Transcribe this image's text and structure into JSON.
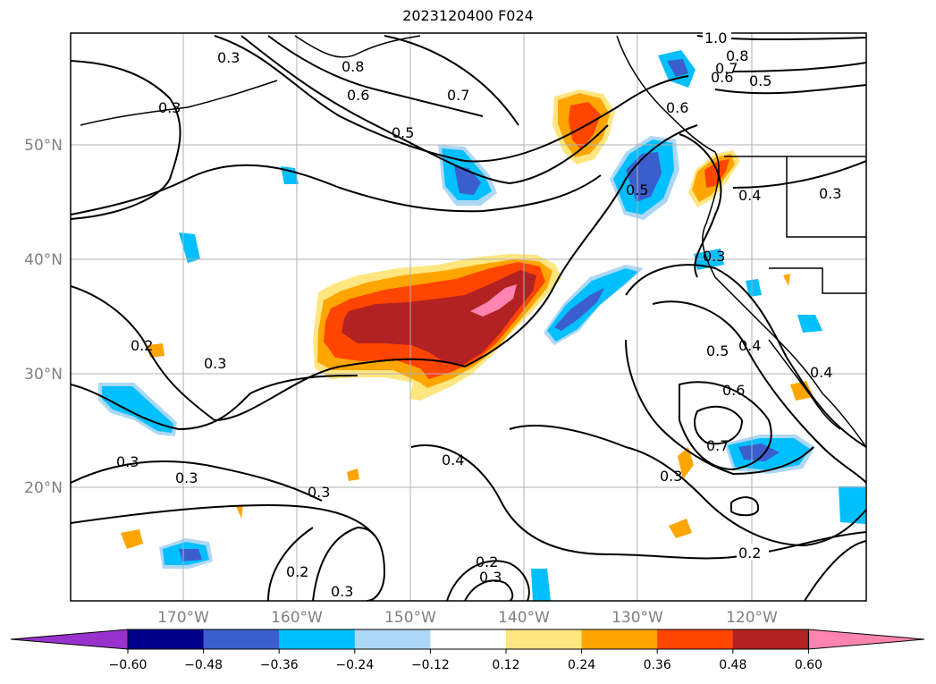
{
  "title": "2023120400 F024",
  "map": {
    "lat_labels": [
      "50°N",
      "40°N",
      "30°N",
      "20°N"
    ],
    "lon_labels": [
      "170°W",
      "160°W",
      "150°W",
      "140°W",
      "130°W",
      "120°W"
    ],
    "grid": true,
    "contour_labels": [
      "1.0",
      "0.8",
      "0.7",
      "0.6",
      "0.5",
      "0.3",
      "0.8",
      "0.6",
      "0.5",
      "0.7",
      "0.3",
      "0.6",
      "0.5",
      "0.4",
      "0.3",
      "0.2",
      "0.3",
      "0.3",
      "0.3",
      "0.3",
      "0.2",
      "0.3",
      "0.2",
      "0.3",
      "0.5",
      "0.4",
      "0.6",
      "0.7",
      "0.3",
      "0.2",
      "0.4",
      "0.3",
      "0.4"
    ]
  },
  "colorbar": {
    "ticks": [
      "−0.60",
      "−0.48",
      "−0.36",
      "−0.24",
      "−0.12",
      "0.12",
      "0.24",
      "0.36",
      "0.48",
      "0.60"
    ],
    "colors": [
      "#9932cc",
      "#00008b",
      "#3a5fcd",
      "#00bfff",
      "#add8f5",
      "#ffffff",
      "#ffe680",
      "#ffa500",
      "#ff4500",
      "#b22222",
      "#ff85b0"
    ]
  }
}
